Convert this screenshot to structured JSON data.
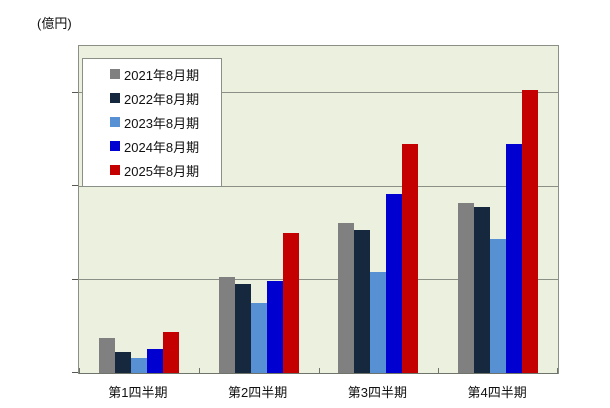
{
  "unit_label": "(億円)",
  "chart_data": {
    "type": "bar",
    "title": "",
    "ylabel": "(億円)",
    "xlabel": "",
    "categories": [
      "第1四半期",
      "第2四半期",
      "第3四半期",
      "第4四半期"
    ],
    "series": [
      {
        "name": "2021年8月期",
        "color": "#808080",
        "values": [
          37,
          103,
          161,
          182
        ]
      },
      {
        "name": "2022年8月期",
        "color": "#15283E",
        "values": [
          22,
          95,
          153,
          178
        ]
      },
      {
        "name": "2023年8月期",
        "color": "#5890D4",
        "values": [
          16,
          75,
          108,
          143
        ]
      },
      {
        "name": "2024年8月期",
        "color": "#0000D0",
        "values": [
          26,
          98,
          192,
          245
        ]
      },
      {
        "name": "2025年8月期",
        "color": "#C40000",
        "values": [
          44,
          150,
          245,
          303
        ]
      }
    ],
    "y_ticks": [
      0,
      100,
      200,
      300
    ],
    "ylim": [
      0,
      350
    ],
    "grid": true,
    "legend_position": "upper-left-inside",
    "plot_background": "#ECF0DF",
    "grid_color": "#8A9085"
  }
}
